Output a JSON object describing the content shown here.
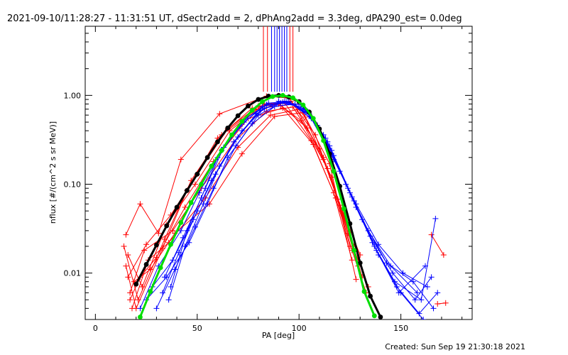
{
  "chart_data": {
    "type": "scatter",
    "title": "2021-09-10/11:28:27 - 11:31:51 UT, dSectr2add = 2, dPhAng2add = 3.3deg, dPA290_est=  0.0deg",
    "xlabel": "PA [deg]",
    "ylabel": "nflux [#/(cm^2 s sr MeV)]",
    "xlim": [
      -5,
      185
    ],
    "ylim": [
      0.003,
      6
    ],
    "yscale": "log",
    "x_ticks": [
      0,
      50,
      100,
      150
    ],
    "x_tick_labels": [
      "0",
      "50",
      "100",
      "150"
    ],
    "y_ticks": [
      0.01,
      0.1,
      1.0
    ],
    "y_tick_labels": [
      "0.01",
      "0.10",
      "1.00"
    ],
    "grid": false,
    "series": [
      {
        "color": "#ff0000",
        "marker": "plus",
        "curves": [
          {
            "x": [
              15,
              22,
              31,
              42,
              61,
              84,
              95,
              103,
              112,
              121,
              127
            ],
            "y": [
              0.027,
              0.06,
              0.028,
              0.19,
              0.62,
              0.98,
              0.93,
              0.57,
              0.19,
              0.05,
              0.02
            ]
          },
          {
            "x": [
              16,
              25,
              37,
              50,
              65,
              80,
              93,
              106,
              117,
              126
            ],
            "y": [
              0.009,
              0.021,
              0.045,
              0.13,
              0.42,
              0.76,
              0.82,
              0.31,
              0.08,
              0.014
            ]
          },
          {
            "x": [
              17,
              24,
              38,
              52,
              68,
              84,
              97,
              110,
              120,
              129
            ],
            "y": [
              0.006,
              0.018,
              0.03,
              0.09,
              0.3,
              0.66,
              0.74,
              0.25,
              0.058,
              0.012
            ]
          },
          {
            "x": [
              14,
              21,
              34,
              47,
              62,
              79,
              91,
              104,
              116,
              125
            ],
            "y": [
              0.02,
              0.005,
              0.024,
              0.11,
              0.36,
              0.7,
              0.77,
              0.43,
              0.12,
              0.02
            ]
          },
          {
            "x": [
              18,
              26,
              36,
              54,
              70,
              86,
              99,
              112,
              122,
              131
            ],
            "y": [
              0.004,
              0.014,
              0.022,
              0.07,
              0.26,
              0.6,
              0.69,
              0.2,
              0.045,
              0.009
            ]
          },
          {
            "x": [
              15,
              20,
              33,
              45,
              60,
              77,
              90,
              101,
              114,
              124,
              134
            ],
            "y": [
              0.012,
              0.004,
              0.019,
              0.085,
              0.33,
              0.72,
              0.8,
              0.52,
              0.15,
              0.028,
              0.007
            ]
          },
          {
            "x": [
              19,
              27,
              39,
              56,
              72,
              88,
              102,
              115,
              128
            ],
            "y": [
              0.008,
              0.011,
              0.028,
              0.06,
              0.22,
              0.58,
              0.64,
              0.17,
              0.0085
            ]
          },
          {
            "x": [
              16,
              23,
              35,
              49,
              66,
              83,
              96,
              108,
              119,
              130
            ],
            "y": [
              0.016,
              0.007,
              0.035,
              0.1,
              0.4,
              0.8,
              0.86,
              0.36,
              0.068,
              0.016
            ]
          },
          {
            "x": [
              17,
              22,
              30,
              44,
              58,
              75,
              92,
              107,
              118,
              126,
              133
            ],
            "y": [
              0.005,
              0.009,
              0.015,
              0.055,
              0.18,
              0.55,
              0.72,
              0.28,
              0.07,
              0.018,
              0.006
            ]
          },
          {
            "x": [
              165,
              171
            ],
            "y": [
              0.027,
              0.016
            ]
          },
          {
            "x": [
              168,
              172
            ],
            "y": [
              0.0045,
              0.0046
            ]
          }
        ]
      },
      {
        "color": "#0000ff",
        "marker": "plus",
        "curves": [
          {
            "x": [
              22,
              31,
              42,
              51,
              62,
              74,
              85,
              95,
              106,
              117,
              128,
              139,
              151,
              163
            ],
            "y": [
              0.004,
              0.012,
              0.03,
              0.08,
              0.24,
              0.55,
              0.82,
              0.85,
              0.55,
              0.19,
              0.06,
              0.021,
              0.01,
              0.007
            ]
          },
          {
            "x": [
              25,
              35,
              46,
              55,
              65,
              77,
              88,
              98,
              109,
              120,
              131,
              143,
              156,
              166
            ],
            "y": [
              0.005,
              0.009,
              0.022,
              0.06,
              0.2,
              0.48,
              0.75,
              0.8,
              0.46,
              0.14,
              0.04,
              0.013,
              0.008,
              0.004
            ]
          },
          {
            "x": [
              28,
              38,
              48,
              57,
              68,
              79,
              90,
              101,
              112,
              123,
              134,
              145,
              158
            ],
            "y": [
              0.007,
              0.014,
              0.04,
              0.11,
              0.3,
              0.62,
              0.86,
              0.78,
              0.36,
              0.1,
              0.03,
              0.012,
              0.006
            ]
          },
          {
            "x": [
              33,
              41,
              50,
              59,
              70,
              81,
              92,
              103,
              114,
              125,
              136,
              147,
              160,
              167
            ],
            "y": [
              0.006,
              0.017,
              0.05,
              0.13,
              0.34,
              0.68,
              0.84,
              0.7,
              0.3,
              0.08,
              0.022,
              0.008,
              0.005,
              0.041
            ]
          },
          {
            "x": [
              36,
              44,
              53,
              61,
              72,
              83,
              94,
              105,
              116,
              127,
              138,
              149,
              162
            ],
            "y": [
              0.005,
              0.02,
              0.06,
              0.16,
              0.4,
              0.72,
              0.85,
              0.62,
              0.24,
              0.065,
              0.018,
              0.006,
              0.012
            ]
          },
          {
            "x": [
              30,
              39,
              49,
              58,
              69,
              80,
              91,
              102,
              113,
              124,
              135,
              146,
              157,
              165
            ],
            "y": [
              0.004,
              0.011,
              0.033,
              0.09,
              0.27,
              0.6,
              0.82,
              0.74,
              0.33,
              0.09,
              0.026,
              0.01,
              0.005,
              0.009
            ]
          },
          {
            "x": [
              34,
              43,
              52,
              60,
              71,
              82,
              93,
              104,
              115,
              126,
              137,
              148,
              159,
              168
            ],
            "y": [
              0.009,
              0.025,
              0.07,
              0.2,
              0.45,
              0.75,
              0.86,
              0.66,
              0.27,
              0.072,
              0.02,
              0.007,
              0.0035,
              0.006
            ]
          },
          {
            "x": [
              37,
              45,
              54,
              63,
              73,
              84,
              95,
              106,
              117,
              128,
              139,
              150,
              161
            ],
            "y": [
              0.007,
              0.03,
              0.09,
              0.26,
              0.5,
              0.79,
              0.84,
              0.58,
              0.21,
              0.055,
              0.016,
              0.006,
              0.003
            ]
          }
        ]
      },
      {
        "name": "",
        "color": "#000000",
        "marker": "dot",
        "x": [
          20,
          25,
          30,
          35,
          40,
          45,
          50,
          55,
          60,
          65,
          70,
          75,
          80,
          85,
          90,
          95,
          100,
          105,
          110,
          115,
          120,
          125,
          130,
          135,
          140
        ],
        "y": [
          0.0075,
          0.0125,
          0.0207,
          0.034,
          0.055,
          0.085,
          0.13,
          0.2,
          0.3,
          0.43,
          0.59,
          0.76,
          0.9,
          0.98,
          1.0,
          0.96,
          0.85,
          0.65,
          0.42,
          0.22,
          0.095,
          0.036,
          0.013,
          0.0055,
          0.0032
        ]
      },
      {
        "name": "",
        "color": "#00dd00",
        "marker": "dot",
        "x": [
          22,
          27,
          32,
          37,
          42,
          47,
          52,
          57,
          62,
          67,
          72,
          77,
          82,
          87,
          92,
          97,
          102,
          107,
          112,
          117,
          122,
          127,
          132,
          137
        ],
        "y": [
          0.0032,
          0.0062,
          0.0115,
          0.021,
          0.037,
          0.062,
          0.1,
          0.16,
          0.24,
          0.36,
          0.51,
          0.68,
          0.85,
          0.97,
          1.0,
          0.94,
          0.78,
          0.55,
          0.31,
          0.14,
          0.053,
          0.018,
          0.0062,
          0.0033
        ]
      }
    ]
  },
  "footer": {
    "created": "Created: Sun Sep 19 21:30:18 2021"
  }
}
